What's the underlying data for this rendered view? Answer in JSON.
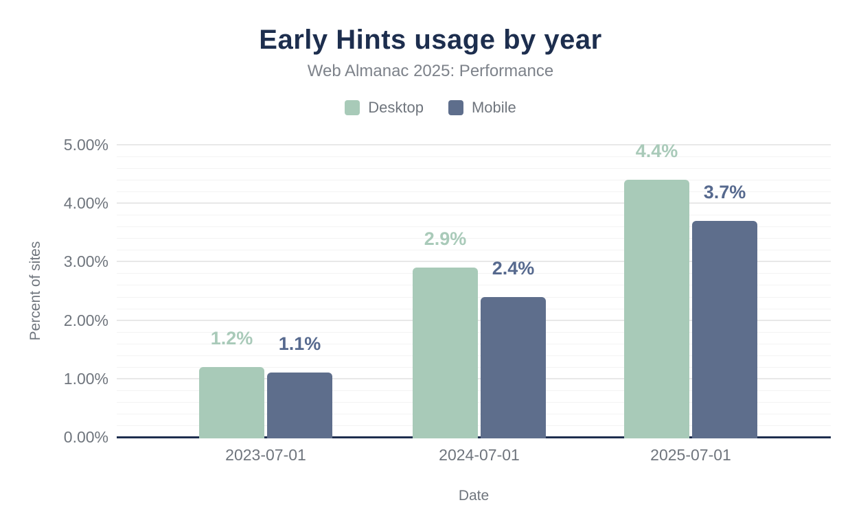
{
  "chart_data": {
    "type": "bar",
    "title": "Early Hints usage by year",
    "subtitle": "Web Almanac 2025: Performance",
    "xlabel": "Date",
    "ylabel": "Percent of sites",
    "categories": [
      "2023-07-01",
      "2024-07-01",
      "2025-07-01"
    ],
    "series": [
      {
        "name": "Desktop",
        "values": [
          1.2,
          2.9,
          4.4
        ],
        "labels": [
          "1.2%",
          "2.9%",
          "4.4%"
        ],
        "color": "#a8cab8",
        "label_color": "#a9cab9"
      },
      {
        "name": "Mobile",
        "values": [
          1.1,
          2.4,
          3.7
        ],
        "labels": [
          "1.1%",
          "2.4%",
          "3.7%"
        ],
        "color": "#5e6e8c",
        "label_color": "#56698e"
      }
    ],
    "ylim": [
      0,
      5
    ],
    "yticks": [
      {
        "value": 0,
        "label": "0.00%"
      },
      {
        "value": 1,
        "label": "1.00%"
      },
      {
        "value": 2,
        "label": "2.00%"
      },
      {
        "value": 3,
        "label": "3.00%"
      },
      {
        "value": 4,
        "label": "4.00%"
      },
      {
        "value": 5,
        "label": "5.00%"
      }
    ],
    "minor_grid_step": 0.2,
    "grid": true,
    "legend_position": "top"
  },
  "colors": {
    "title": "#1d2e4e",
    "subtitle_text": "#7d828a",
    "text_muted": "#6f757d",
    "axis_line": "#1d2e4e",
    "grid_major": "#e8e8e8",
    "grid_minor": "#f3f3f3",
    "background": "#ffffff"
  }
}
